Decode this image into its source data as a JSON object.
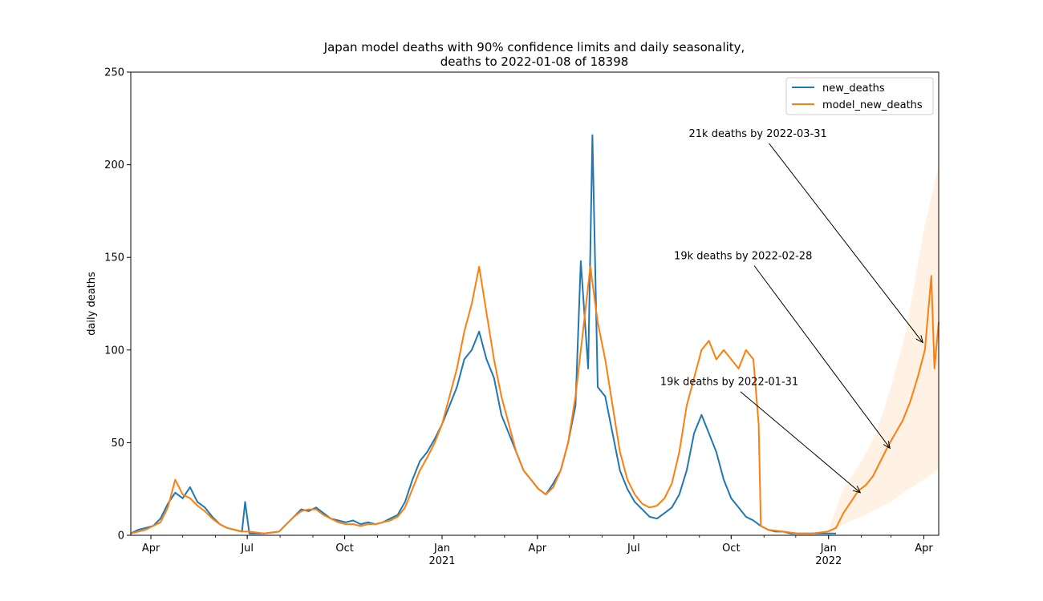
{
  "chart_data": {
    "type": "line",
    "title": "Japan model deaths with 90% confidence limits and daily seasonality,",
    "subtitle": "deaths to 2022-01-08 of 18398",
    "ylabel": "daily deaths",
    "xlabel": "",
    "xlim": [
      "2020-03-13",
      "2022-04-15"
    ],
    "ylim": [
      0,
      250
    ],
    "yticks": [
      0,
      50,
      100,
      150,
      200,
      250
    ],
    "xticks": [
      {
        "date": "2020-04-01",
        "label": "Apr",
        "year": ""
      },
      {
        "date": "2020-07-01",
        "label": "Jul",
        "year": ""
      },
      {
        "date": "2020-10-01",
        "label": "Oct",
        "year": ""
      },
      {
        "date": "2021-01-01",
        "label": "Jan",
        "year": "2021"
      },
      {
        "date": "2021-04-01",
        "label": "Apr",
        "year": ""
      },
      {
        "date": "2021-07-01",
        "label": "Jul",
        "year": ""
      },
      {
        "date": "2021-10-01",
        "label": "Oct",
        "year": ""
      },
      {
        "date": "2022-01-01",
        "label": "Jan",
        "year": "2022"
      },
      {
        "date": "2022-04-01",
        "label": "Apr",
        "year": ""
      }
    ],
    "grid": false,
    "legend_position": "top-right",
    "series": [
      {
        "name": "new_deaths",
        "color": "#1f77b4",
        "points": [
          [
            "2020-03-13",
            1
          ],
          [
            "2020-03-20",
            3
          ],
          [
            "2020-03-27",
            4
          ],
          [
            "2020-04-03",
            5
          ],
          [
            "2020-04-10",
            9
          ],
          [
            "2020-04-17",
            17
          ],
          [
            "2020-04-24",
            23
          ],
          [
            "2020-05-01",
            20
          ],
          [
            "2020-05-08",
            26
          ],
          [
            "2020-05-15",
            18
          ],
          [
            "2020-05-22",
            15
          ],
          [
            "2020-05-29",
            10
          ],
          [
            "2020-06-05",
            6
          ],
          [
            "2020-06-12",
            4
          ],
          [
            "2020-06-19",
            3
          ],
          [
            "2020-06-26",
            2
          ],
          [
            "2020-06-29",
            18
          ],
          [
            "2020-07-03",
            1
          ],
          [
            "2020-07-17",
            1
          ],
          [
            "2020-07-31",
            2
          ],
          [
            "2020-08-07",
            6
          ],
          [
            "2020-08-14",
            10
          ],
          [
            "2020-08-21",
            14
          ],
          [
            "2020-08-28",
            13
          ],
          [
            "2020-09-04",
            15
          ],
          [
            "2020-09-11",
            12
          ],
          [
            "2020-09-18",
            9
          ],
          [
            "2020-09-25",
            8
          ],
          [
            "2020-10-02",
            7
          ],
          [
            "2020-10-09",
            8
          ],
          [
            "2020-10-16",
            6
          ],
          [
            "2020-10-23",
            7
          ],
          [
            "2020-10-30",
            6
          ],
          [
            "2020-11-06",
            7
          ],
          [
            "2020-11-13",
            9
          ],
          [
            "2020-11-20",
            11
          ],
          [
            "2020-11-27",
            18
          ],
          [
            "2020-12-04",
            30
          ],
          [
            "2020-12-11",
            40
          ],
          [
            "2020-12-18",
            45
          ],
          [
            "2020-12-25",
            52
          ],
          [
            "2021-01-01",
            60
          ],
          [
            "2021-01-08",
            70
          ],
          [
            "2021-01-15",
            80
          ],
          [
            "2021-01-22",
            95
          ],
          [
            "2021-01-29",
            100
          ],
          [
            "2021-02-05",
            110
          ],
          [
            "2021-02-12",
            95
          ],
          [
            "2021-02-19",
            85
          ],
          [
            "2021-02-26",
            65
          ],
          [
            "2021-03-05",
            55
          ],
          [
            "2021-03-12",
            45
          ],
          [
            "2021-03-19",
            35
          ],
          [
            "2021-03-26",
            30
          ],
          [
            "2021-04-02",
            25
          ],
          [
            "2021-04-09",
            22
          ],
          [
            "2021-04-16",
            28
          ],
          [
            "2021-04-23",
            35
          ],
          [
            "2021-04-30",
            50
          ],
          [
            "2021-05-07",
            70
          ],
          [
            "2021-05-12",
            148
          ],
          [
            "2021-05-19",
            90
          ],
          [
            "2021-05-23",
            216
          ],
          [
            "2021-05-28",
            80
          ],
          [
            "2021-06-04",
            75
          ],
          [
            "2021-06-11",
            55
          ],
          [
            "2021-06-18",
            35
          ],
          [
            "2021-06-25",
            25
          ],
          [
            "2021-07-02",
            18
          ],
          [
            "2021-07-09",
            14
          ],
          [
            "2021-07-16",
            10
          ],
          [
            "2021-07-23",
            9
          ],
          [
            "2021-07-30",
            12
          ],
          [
            "2021-08-06",
            15
          ],
          [
            "2021-08-13",
            22
          ],
          [
            "2021-08-20",
            35
          ],
          [
            "2021-08-27",
            55
          ],
          [
            "2021-09-03",
            65
          ],
          [
            "2021-09-10",
            55
          ],
          [
            "2021-09-17",
            45
          ],
          [
            "2021-09-24",
            30
          ],
          [
            "2021-10-01",
            20
          ],
          [
            "2021-10-08",
            15
          ],
          [
            "2021-10-15",
            10
          ],
          [
            "2021-10-22",
            8
          ],
          [
            "2021-10-29",
            5
          ],
          [
            "2021-11-05",
            3
          ],
          [
            "2021-11-12",
            2
          ],
          [
            "2021-11-19",
            2
          ],
          [
            "2021-11-26",
            1
          ],
          [
            "2021-12-03",
            1
          ],
          [
            "2021-12-10",
            1
          ],
          [
            "2021-12-17",
            1
          ],
          [
            "2021-12-24",
            1
          ],
          [
            "2021-12-31",
            1
          ],
          [
            "2022-01-08",
            1
          ]
        ]
      },
      {
        "name": "model_new_deaths",
        "color": "#ff7f0e",
        "points": [
          [
            "2020-03-13",
            1
          ],
          [
            "2020-03-20",
            2
          ],
          [
            "2020-03-27",
            3
          ],
          [
            "2020-04-03",
            5
          ],
          [
            "2020-04-10",
            7
          ],
          [
            "2020-04-17",
            15
          ],
          [
            "2020-04-24",
            30
          ],
          [
            "2020-05-01",
            22
          ],
          [
            "2020-05-08",
            20
          ],
          [
            "2020-05-15",
            16
          ],
          [
            "2020-05-22",
            13
          ],
          [
            "2020-05-29",
            9
          ],
          [
            "2020-06-05",
            6
          ],
          [
            "2020-06-12",
            4
          ],
          [
            "2020-06-19",
            3
          ],
          [
            "2020-06-26",
            2
          ],
          [
            "2020-07-03",
            2
          ],
          [
            "2020-07-17",
            1
          ],
          [
            "2020-07-31",
            2
          ],
          [
            "2020-08-07",
            6
          ],
          [
            "2020-08-14",
            10
          ],
          [
            "2020-08-21",
            13
          ],
          [
            "2020-08-28",
            14
          ],
          [
            "2020-09-04",
            14
          ],
          [
            "2020-09-11",
            11
          ],
          [
            "2020-09-18",
            9
          ],
          [
            "2020-09-25",
            7
          ],
          [
            "2020-10-02",
            6
          ],
          [
            "2020-10-09",
            6
          ],
          [
            "2020-10-16",
            5
          ],
          [
            "2020-10-23",
            6
          ],
          [
            "2020-10-30",
            6
          ],
          [
            "2020-11-06",
            7
          ],
          [
            "2020-11-13",
            8
          ],
          [
            "2020-11-20",
            10
          ],
          [
            "2020-11-27",
            15
          ],
          [
            "2020-12-04",
            25
          ],
          [
            "2020-12-11",
            35
          ],
          [
            "2020-12-18",
            42
          ],
          [
            "2020-12-25",
            50
          ],
          [
            "2021-01-01",
            60
          ],
          [
            "2021-01-08",
            75
          ],
          [
            "2021-01-15",
            90
          ],
          [
            "2021-01-22",
            110
          ],
          [
            "2021-01-29",
            125
          ],
          [
            "2021-02-05",
            145
          ],
          [
            "2021-02-12",
            120
          ],
          [
            "2021-02-19",
            95
          ],
          [
            "2021-02-26",
            75
          ],
          [
            "2021-03-05",
            60
          ],
          [
            "2021-03-12",
            45
          ],
          [
            "2021-03-19",
            35
          ],
          [
            "2021-03-26",
            30
          ],
          [
            "2021-04-02",
            25
          ],
          [
            "2021-04-09",
            22
          ],
          [
            "2021-04-16",
            26
          ],
          [
            "2021-04-23",
            35
          ],
          [
            "2021-04-30",
            50
          ],
          [
            "2021-05-07",
            75
          ],
          [
            "2021-05-14",
            110
          ],
          [
            "2021-05-21",
            145
          ],
          [
            "2021-05-28",
            115
          ],
          [
            "2021-06-04",
            95
          ],
          [
            "2021-06-11",
            70
          ],
          [
            "2021-06-18",
            45
          ],
          [
            "2021-06-25",
            30
          ],
          [
            "2021-07-02",
            22
          ],
          [
            "2021-07-09",
            17
          ],
          [
            "2021-07-16",
            15
          ],
          [
            "2021-07-23",
            16
          ],
          [
            "2021-07-30",
            20
          ],
          [
            "2021-08-06",
            28
          ],
          [
            "2021-08-13",
            45
          ],
          [
            "2021-08-20",
            70
          ],
          [
            "2021-08-27",
            85
          ],
          [
            "2021-09-03",
            100
          ],
          [
            "2021-09-10",
            105
          ],
          [
            "2021-09-17",
            95
          ],
          [
            "2021-09-24",
            100
          ],
          [
            "2021-10-01",
            95
          ],
          [
            "2021-10-08",
            90
          ],
          [
            "2021-10-15",
            100
          ],
          [
            "2021-10-22",
            95
          ],
          [
            "2021-10-27",
            60
          ],
          [
            "2021-10-29",
            5
          ],
          [
            "2021-11-05",
            3
          ],
          [
            "2021-11-19",
            2
          ],
          [
            "2021-12-03",
            1
          ],
          [
            "2021-12-17",
            1
          ],
          [
            "2021-12-31",
            2
          ],
          [
            "2022-01-08",
            4
          ],
          [
            "2022-01-15",
            12
          ],
          [
            "2022-01-22",
            18
          ],
          [
            "2022-01-29",
            24
          ],
          [
            "2022-02-05",
            27
          ],
          [
            "2022-02-12",
            32
          ],
          [
            "2022-02-19",
            40
          ],
          [
            "2022-02-26",
            48
          ],
          [
            "2022-03-05",
            55
          ],
          [
            "2022-03-12",
            62
          ],
          [
            "2022-03-19",
            72
          ],
          [
            "2022-03-26",
            85
          ],
          [
            "2022-04-02",
            100
          ],
          [
            "2022-04-08",
            140
          ],
          [
            "2022-04-11",
            90
          ],
          [
            "2022-04-15",
            115
          ]
        ]
      }
    ],
    "confidence_band": {
      "label": "90% confidence limits",
      "color": "#ffe8d0",
      "lower": [
        [
          "2022-01-01",
          1
        ],
        [
          "2022-01-15",
          6
        ],
        [
          "2022-02-01",
          10
        ],
        [
          "2022-02-15",
          14
        ],
        [
          "2022-03-01",
          18
        ],
        [
          "2022-03-15",
          24
        ],
        [
          "2022-04-01",
          30
        ],
        [
          "2022-04-15",
          36
        ]
      ],
      "upper": [
        [
          "2022-01-01",
          3
        ],
        [
          "2022-01-15",
          25
        ],
        [
          "2022-02-01",
          40
        ],
        [
          "2022-02-15",
          55
        ],
        [
          "2022-03-01",
          80
        ],
        [
          "2022-03-15",
          110
        ],
        [
          "2022-04-01",
          165
        ],
        [
          "2022-04-15",
          200
        ]
      ]
    },
    "annotations": [
      {
        "text": "21k deaths by 2022-03-31",
        "text_x": "2021-08-22",
        "text_y": 215,
        "target_x": "2022-03-31",
        "target_y": 104
      },
      {
        "text": "19k deaths by 2022-02-28",
        "text_x": "2021-08-08",
        "text_y": 149,
        "target_x": "2022-02-28",
        "target_y": 47
      },
      {
        "text": "19k deaths by 2022-01-31",
        "text_x": "2021-07-26",
        "text_y": 81,
        "target_x": "2022-01-31",
        "target_y": 23
      }
    ]
  }
}
